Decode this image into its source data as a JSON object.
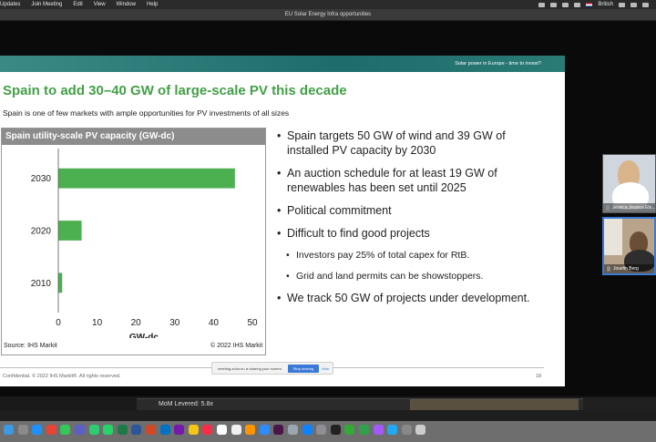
{
  "menubar": {
    "items": [
      "Updates",
      "Join Meeting",
      "Edit",
      "View",
      "Window",
      "Help"
    ],
    "input_source": "British"
  },
  "window": {
    "title": "EU Solar Energy Infra opportunities"
  },
  "slide": {
    "banner": "Solar power in Europe - time to invest?",
    "title": "Spain to add 30–40 GW of large-scale PV this decade",
    "subtitle": "Spain is one of few markets with ample opportunities for PV investments of all sizes",
    "chart_header": "Spain utility-scale PV capacity (GW-dc)",
    "source": "Source: IHS Markit",
    "copyright": "© 2022 IHS Markit",
    "bullets": [
      {
        "text": "Spain targets 50 GW of wind and 39 GW of installed PV capacity by 2030",
        "level": 1
      },
      {
        "text": "An auction schedule for at least 19 GW of renewables has been set until 2025",
        "level": 1
      },
      {
        "text": "Political commitment",
        "level": 1
      },
      {
        "text": "Difficult to find good projects",
        "level": 1
      },
      {
        "text": "Investors pay 25% of total capex for RtB.",
        "level": 2
      },
      {
        "text": "Grid and land permits can be showstoppers.",
        "level": 2
      },
      {
        "text": "We track 50 GW of projects under development.",
        "level": 1
      }
    ],
    "footer": "Confidential. © 2022 IHS Markit®. All rights reserved.",
    "page_number": "18"
  },
  "chart_data": {
    "type": "bar",
    "orientation": "horizontal",
    "title": "Spain utility-scale PV capacity (GW-dc)",
    "categories": [
      "2030",
      "2020",
      "2010"
    ],
    "values": [
      45.5,
      6,
      1
    ],
    "xlabel": "GW-dc",
    "xlim": [
      0,
      50
    ],
    "xticks": [
      0,
      10,
      20,
      30,
      40,
      50
    ],
    "bar_color": "#4caf50",
    "grid": false
  },
  "share_bar": {
    "message": "meeting.zoho.eu is sharing your screen.",
    "stop_label": "Stop sharing",
    "hide_label": "Hide"
  },
  "participants": [
    {
      "name": "Jessica Jessica Els..."
    },
    {
      "name": "Josefin Berg"
    }
  ],
  "background_window": {
    "text": "MoM Levered: 5.8x"
  },
  "colors": {
    "title_green": "#43a047",
    "banner_teal": "#1f6d6b",
    "bar_green": "#4caf50",
    "accent_blue": "#3a79d6"
  }
}
